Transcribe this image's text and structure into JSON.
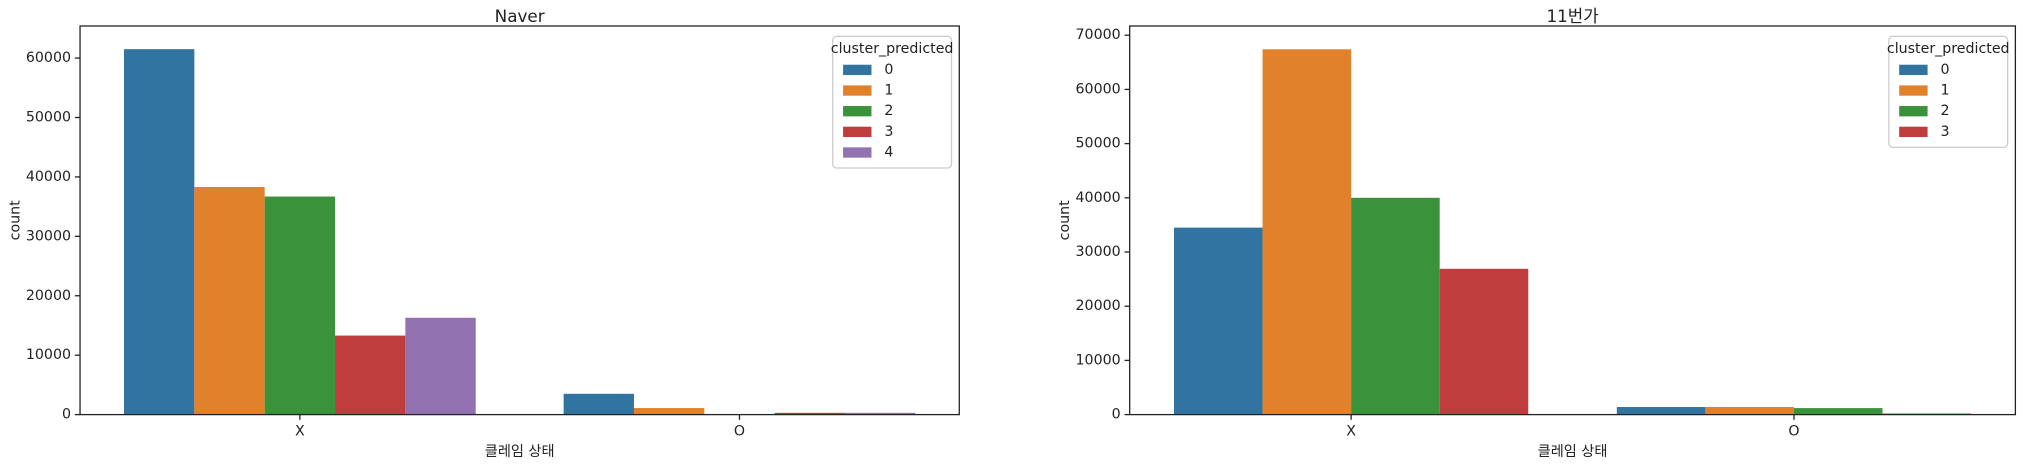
{
  "chart_data": [
    {
      "type": "bar",
      "title": "Naver",
      "x_label": "클레임 상태",
      "y_label": "count",
      "legend_title": "cluster_predicted",
      "categories": [
        "X",
        "O"
      ],
      "series": [
        {
          "name": "0",
          "color": "#3274a1",
          "values": [
            61500,
            3500
          ]
        },
        {
          "name": "1",
          "color": "#e1812c",
          "values": [
            38300,
            1100
          ]
        },
        {
          "name": "2",
          "color": "#3a923a",
          "values": [
            36700,
            50
          ]
        },
        {
          "name": "3",
          "color": "#c03d3e",
          "values": [
            13300,
            300
          ]
        },
        {
          "name": "4",
          "color": "#9372b2",
          "values": [
            16300,
            300
          ]
        }
      ],
      "ylim": [
        0,
        65400
      ],
      "yticks": [
        0,
        10000,
        20000,
        30000,
        40000,
        50000,
        60000
      ]
    },
    {
      "type": "bar",
      "title": "11번가",
      "x_label": "클레임 상태",
      "y_label": "count",
      "legend_title": "cluster_predicted",
      "categories": [
        "X",
        "O"
      ],
      "series": [
        {
          "name": "0",
          "color": "#3274a1",
          "values": [
            34500,
            1400
          ]
        },
        {
          "name": "1",
          "color": "#e1812c",
          "values": [
            67400,
            1400
          ]
        },
        {
          "name": "2",
          "color": "#3a923a",
          "values": [
            40000,
            1200
          ]
        },
        {
          "name": "3",
          "color": "#c03d3e",
          "values": [
            26900,
            200
          ]
        }
      ],
      "ylim": [
        0,
        71700
      ],
      "yticks": [
        0,
        10000,
        20000,
        30000,
        40000,
        50000,
        60000,
        70000
      ]
    }
  ]
}
